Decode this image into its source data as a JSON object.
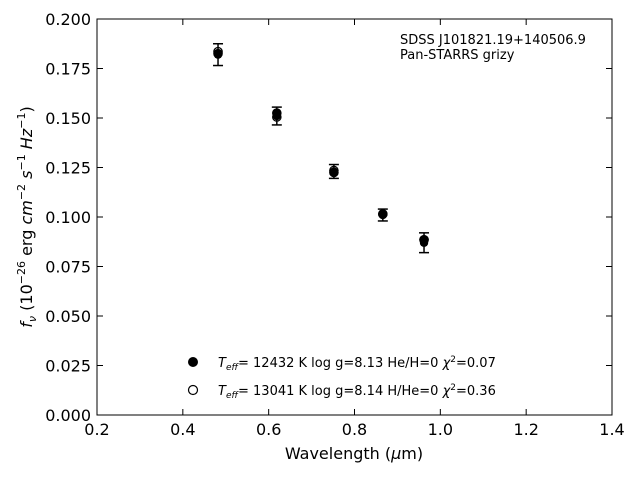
{
  "chart_data": {
    "type": "scatter",
    "title": "",
    "xlabel": "Wavelength (μm)",
    "ylabel": "f_ν (10^-26 erg cm^-2 s^-1 Hz^-1)",
    "xlim": [
      0.2,
      1.4
    ],
    "ylim": [
      0.0,
      0.2
    ],
    "xticks": [
      "0.2",
      "0.4",
      "0.6",
      "0.8",
      "1.0",
      "1.2",
      "1.4"
    ],
    "yticks": [
      "0.000",
      "0.025",
      "0.050",
      "0.075",
      "0.100",
      "0.125",
      "0.150",
      "0.175",
      "0.200"
    ],
    "grid": false,
    "legend_position": "lower-center",
    "annotations": [
      "SDSS J101821.19+140506.9",
      "Pan-STARRS grizy"
    ],
    "observed": {
      "x": [
        0.482,
        0.619,
        0.752,
        0.866,
        0.962
      ],
      "y": [
        0.182,
        0.151,
        0.123,
        0.101,
        0.087
      ],
      "yerr": [
        0.0055,
        0.0045,
        0.0035,
        0.003,
        0.005
      ],
      "color": "#000000"
    },
    "series": [
      {
        "name": "T_eff= 12432 K  log g=8.13  He/H=0  χ²=0.07",
        "marker": "filled-circle",
        "x": [
          0.482,
          0.619,
          0.752,
          0.866,
          0.962
        ],
        "y": [
          0.1825,
          0.1525,
          0.1225,
          0.1015,
          0.0885
        ]
      },
      {
        "name": "T_eff= 13041 K  log g=8.14  H/He=0  χ²=0.36",
        "marker": "open-circle",
        "x": [
          0.482,
          0.619,
          0.752,
          0.866,
          0.962
        ],
        "y": [
          0.1835,
          0.1505,
          0.1235,
          0.1015,
          0.0885
        ]
      }
    ]
  }
}
